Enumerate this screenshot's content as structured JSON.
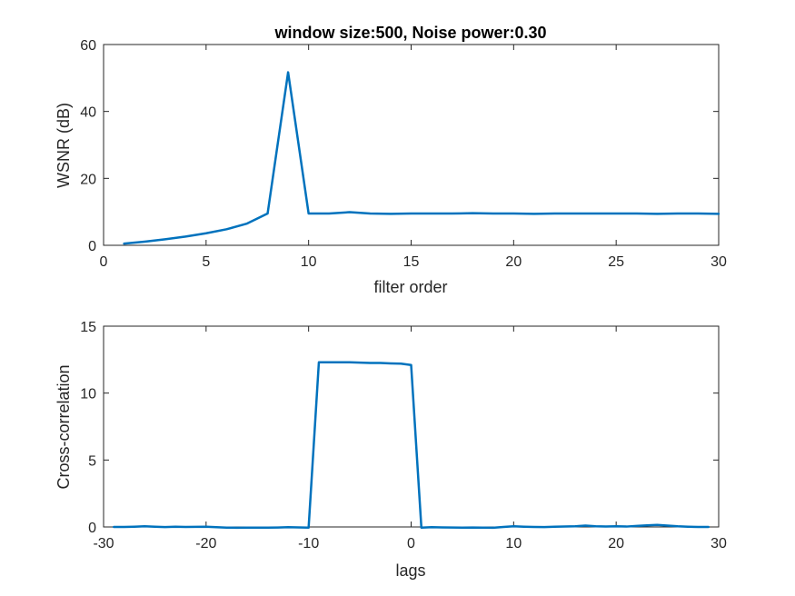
{
  "chart_data": [
    {
      "type": "line",
      "title": "window size:500, Noise power:0.30",
      "xlabel": "filter order",
      "ylabel": "WSNR (dB)",
      "xlim": [
        0,
        30
      ],
      "ylim": [
        0,
        60
      ],
      "xticks": [
        0,
        5,
        10,
        15,
        20,
        25,
        30
      ],
      "yticks": [
        0,
        20,
        40,
        60
      ],
      "grid": false,
      "series": [
        {
          "color": "#0072BD",
          "x": [
            1,
            2,
            3,
            4,
            5,
            6,
            7,
            8,
            9,
            10,
            11,
            12,
            13,
            14,
            15,
            16,
            17,
            18,
            19,
            20,
            21,
            22,
            23,
            24,
            25,
            26,
            27,
            28,
            29,
            30
          ],
          "y": [
            0.5,
            1.1,
            1.8,
            2.6,
            3.6,
            4.8,
            6.5,
            9.5,
            51.7,
            9.5,
            9.5,
            9.9,
            9.5,
            9.4,
            9.5,
            9.5,
            9.5,
            9.6,
            9.5,
            9.5,
            9.4,
            9.5,
            9.5,
            9.5,
            9.5,
            9.5,
            9.4,
            9.5,
            9.5,
            9.4
          ]
        }
      ]
    },
    {
      "type": "line",
      "title": "",
      "xlabel": "lags",
      "ylabel": "Cross-correlation",
      "xlim": [
        -30,
        30
      ],
      "ylim": [
        0,
        15
      ],
      "xticks": [
        -30,
        -20,
        -10,
        0,
        10,
        20,
        30
      ],
      "yticks": [
        0,
        5,
        10,
        15
      ],
      "grid": false,
      "series": [
        {
          "color": "#0072BD",
          "x": [
            -29,
            -28,
            -27,
            -26,
            -25,
            -24,
            -23,
            -22,
            -21,
            -20,
            -19,
            -18,
            -17,
            -16,
            -15,
            -14,
            -13,
            -12,
            -11,
            -10,
            -9,
            -8,
            -7,
            -6,
            -5,
            -4,
            -3,
            -2,
            -1,
            0,
            1,
            2,
            3,
            4,
            5,
            6,
            7,
            8,
            9,
            10,
            11,
            12,
            13,
            14,
            15,
            16,
            17,
            18,
            19,
            20,
            21,
            22,
            23,
            24,
            25,
            26,
            27,
            28,
            29
          ],
          "y": [
            0.0,
            0.0,
            0.02,
            0.05,
            0.02,
            -0.01,
            0.02,
            0.0,
            0.01,
            0.02,
            -0.02,
            -0.05,
            -0.06,
            -0.05,
            -0.05,
            -0.05,
            -0.04,
            -0.02,
            -0.03,
            -0.05,
            12.3,
            12.3,
            12.3,
            12.3,
            12.28,
            12.25,
            12.25,
            12.22,
            12.2,
            12.1,
            -0.05,
            -0.02,
            -0.03,
            -0.04,
            -0.05,
            -0.04,
            -0.05,
            -0.06,
            0.0,
            0.05,
            0.02,
            0.0,
            -0.01,
            0.02,
            0.03,
            0.05,
            0.1,
            0.05,
            0.03,
            0.05,
            0.03,
            0.08,
            0.12,
            0.15,
            0.1,
            0.05,
            0.02,
            0.0,
            0.0
          ]
        }
      ]
    }
  ]
}
